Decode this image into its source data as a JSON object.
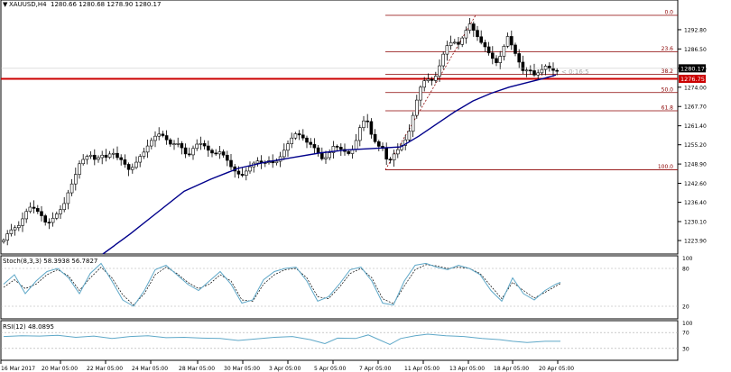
{
  "header": {
    "symbol_label": "XAUUSD,H4",
    "ohlc": "1280.66 1280.68 1278.90 1280.17"
  },
  "colors": {
    "candle_up": "#ffffff",
    "candle_down": "#000000",
    "ma_line": "#00008b",
    "support_line": "#cc0000",
    "fib_line": "#8b0000",
    "stoch_main": "#5fa8c8",
    "stoch_signal": "#000000",
    "rsi_line": "#5fa8c8",
    "price_tag_bg": "#cc0000",
    "bid_tag_bg": "#000000"
  },
  "chart_data": [
    {
      "type": "candlestick",
      "symbol": "XAUUSD",
      "timeframe": "H4",
      "ylim": [
        1219.5,
        1302.5
      ],
      "y_ticks": [
        1223.9,
        1230.1,
        1236.4,
        1242.6,
        1248.9,
        1255.2,
        1261.4,
        1267.7,
        1274.0,
        1280.2,
        1286.5,
        1292.8
      ],
      "x_tick_labels": [
        "16 Mar 2017",
        "20 Mar 05:00",
        "22 Mar 05:00",
        "24 Mar 05:00",
        "28 Mar 05:00",
        "30 Mar 05:00",
        "3 Apr 05:00",
        "5 Apr 05:00",
        "7 Apr 05:00",
        "11 Apr 05:00",
        "13 Apr 05:00",
        "18 Apr 05:00",
        "20 Apr 05:00"
      ],
      "current_price": 1280.17,
      "current_price_label": "1280.17",
      "support_level": 1276.75,
      "support_label": "1276.75",
      "countdown_label": "< 0:16:5",
      "fibonacci": {
        "high": 1297.5,
        "low": 1247.0,
        "levels": [
          {
            "label": "0.0",
            "ratio": 0.0
          },
          {
            "label": "23.6",
            "ratio": 0.236
          },
          {
            "label": "38.2",
            "ratio": 0.382
          },
          {
            "label": "50.0",
            "ratio": 0.5
          },
          {
            "label": "61.8",
            "ratio": 0.618
          },
          {
            "label": "100.0",
            "ratio": 1.0
          }
        ]
      },
      "close_points": [
        [
          0,
          1224
        ],
        [
          6,
          1227
        ],
        [
          12,
          1228
        ],
        [
          18,
          1229
        ],
        [
          24,
          1233
        ],
        [
          30,
          1235
        ],
        [
          36,
          1234
        ],
        [
          42,
          1232
        ],
        [
          48,
          1229
        ],
        [
          54,
          1231
        ],
        [
          60,
          1233
        ],
        [
          66,
          1235
        ],
        [
          72,
          1240
        ],
        [
          78,
          1244
        ],
        [
          84,
          1249
        ],
        [
          90,
          1251
        ],
        [
          96,
          1252
        ],
        [
          102,
          1250
        ],
        [
          108,
          1252
        ],
        [
          114,
          1251
        ],
        [
          120,
          1253
        ],
        [
          126,
          1251
        ],
        [
          132,
          1250
        ],
        [
          138,
          1247
        ],
        [
          144,
          1248
        ],
        [
          150,
          1251
        ],
        [
          156,
          1253
        ],
        [
          162,
          1256
        ],
        [
          168,
          1258
        ],
        [
          174,
          1259
        ],
        [
          180,
          1257
        ],
        [
          186,
          1255
        ],
        [
          192,
          1256
        ],
        [
          198,
          1254
        ],
        [
          204,
          1251
        ],
        [
          210,
          1254
        ],
        [
          216,
          1256
        ],
        [
          222,
          1255
        ],
        [
          228,
          1253
        ],
        [
          234,
          1252
        ],
        [
          240,
          1253
        ],
        [
          246,
          1251
        ],
        [
          252,
          1248
        ],
        [
          258,
          1246
        ],
        [
          264,
          1245
        ],
        [
          270,
          1247
        ],
        [
          276,
          1249
        ],
        [
          282,
          1250
        ],
        [
          288,
          1249
        ],
        [
          294,
          1250
        ],
        [
          300,
          1249
        ],
        [
          306,
          1251
        ],
        [
          312,
          1254
        ],
        [
          318,
          1257
        ],
        [
          324,
          1259
        ],
        [
          330,
          1258
        ],
        [
          336,
          1256
        ],
        [
          342,
          1255
        ],
        [
          348,
          1253
        ],
        [
          354,
          1250
        ],
        [
          360,
          1252
        ],
        [
          366,
          1255
        ],
        [
          372,
          1254
        ],
        [
          378,
          1253
        ],
        [
          384,
          1252
        ],
        [
          390,
          1256
        ],
        [
          396,
          1262
        ],
        [
          402,
          1264
        ],
        [
          408,
          1258
        ],
        [
          414,
          1255
        ],
        [
          420,
          1254
        ],
        [
          426,
          1249
        ],
        [
          432,
          1252
        ],
        [
          438,
          1254
        ],
        [
          444,
          1256
        ],
        [
          450,
          1260
        ],
        [
          456,
          1268
        ],
        [
          462,
          1274
        ],
        [
          468,
          1277
        ],
        [
          474,
          1276
        ],
        [
          480,
          1278
        ],
        [
          486,
          1284
        ],
        [
          492,
          1288
        ],
        [
          498,
          1289
        ],
        [
          504,
          1288
        ],
        [
          510,
          1291
        ],
        [
          516,
          1295
        ],
        [
          522,
          1292
        ],
        [
          528,
          1289
        ],
        [
          534,
          1287
        ],
        [
          540,
          1284
        ],
        [
          546,
          1282
        ],
        [
          552,
          1285
        ],
        [
          558,
          1291
        ],
        [
          564,
          1287
        ],
        [
          570,
          1283
        ],
        [
          576,
          1279
        ],
        [
          582,
          1280
        ],
        [
          588,
          1278
        ],
        [
          594,
          1279
        ],
        [
          600,
          1281
        ],
        [
          606,
          1280
        ],
        [
          612,
          1279
        ],
        [
          617,
          1280.17
        ]
      ],
      "ma_points": [
        [
          110,
          1219.5
        ],
        [
          140,
          1226
        ],
        [
          170,
          1233
        ],
        [
          200,
          1240
        ],
        [
          230,
          1244
        ],
        [
          260,
          1247.5
        ],
        [
          290,
          1249.5
        ],
        [
          320,
          1251
        ],
        [
          350,
          1252.5
        ],
        [
          380,
          1253.5
        ],
        [
          410,
          1254
        ],
        [
          440,
          1254.5
        ],
        [
          460,
          1258
        ],
        [
          480,
          1262
        ],
        [
          500,
          1266
        ],
        [
          520,
          1269.5
        ],
        [
          540,
          1272
        ],
        [
          560,
          1274
        ],
        [
          580,
          1275.5
        ],
        [
          600,
          1277
        ],
        [
          612,
          1278
        ]
      ]
    },
    {
      "type": "line",
      "title": "Stoch(8,3,3) 58.3938 56.7827",
      "ylim": [
        0,
        100
      ],
      "y_ticks": [
        20,
        80,
        100
      ],
      "y_tick_labels": [
        "20",
        "80",
        "100"
      ],
      "series": [
        {
          "name": "main",
          "points": [
            [
              0,
              55
            ],
            [
              12,
              70
            ],
            [
              24,
              40
            ],
            [
              36,
              60
            ],
            [
              48,
              75
            ],
            [
              60,
              80
            ],
            [
              72,
              65
            ],
            [
              84,
              40
            ],
            [
              96,
              72
            ],
            [
              108,
              88
            ],
            [
              120,
              60
            ],
            [
              132,
              30
            ],
            [
              144,
              20
            ],
            [
              156,
              45
            ],
            [
              168,
              78
            ],
            [
              180,
              85
            ],
            [
              192,
              70
            ],
            [
              204,
              55
            ],
            [
              216,
              45
            ],
            [
              228,
              60
            ],
            [
              240,
              75
            ],
            [
              252,
              55
            ],
            [
              264,
              25
            ],
            [
              276,
              30
            ],
            [
              288,
              62
            ],
            [
              300,
              75
            ],
            [
              312,
              80
            ],
            [
              324,
              82
            ],
            [
              336,
              60
            ],
            [
              348,
              28
            ],
            [
              360,
              35
            ],
            [
              372,
              55
            ],
            [
              384,
              78
            ],
            [
              396,
              82
            ],
            [
              408,
              60
            ],
            [
              420,
              25
            ],
            [
              432,
              22
            ],
            [
              444,
              60
            ],
            [
              456,
              85
            ],
            [
              468,
              88
            ],
            [
              480,
              82
            ],
            [
              492,
              78
            ],
            [
              504,
              85
            ],
            [
              516,
              80
            ],
            [
              528,
              70
            ],
            [
              540,
              45
            ],
            [
              552,
              28
            ],
            [
              564,
              65
            ],
            [
              576,
              40
            ],
            [
              588,
              30
            ],
            [
              600,
              45
            ],
            [
              612,
              55
            ],
            [
              617,
              58
            ]
          ]
        },
        {
          "name": "signal",
          "points": [
            [
              0,
              50
            ],
            [
              12,
              62
            ],
            [
              24,
              48
            ],
            [
              36,
              55
            ],
            [
              48,
              70
            ],
            [
              60,
              78
            ],
            [
              72,
              68
            ],
            [
              84,
              45
            ],
            [
              96,
              65
            ],
            [
              108,
              82
            ],
            [
              120,
              65
            ],
            [
              132,
              38
            ],
            [
              144,
              22
            ],
            [
              156,
              40
            ],
            [
              168,
              70
            ],
            [
              180,
              82
            ],
            [
              192,
              72
            ],
            [
              204,
              58
            ],
            [
              216,
              48
            ],
            [
              228,
              55
            ],
            [
              240,
              70
            ],
            [
              252,
              60
            ],
            [
              264,
              30
            ],
            [
              276,
              28
            ],
            [
              288,
              55
            ],
            [
              300,
              70
            ],
            [
              312,
              78
            ],
            [
              324,
              80
            ],
            [
              336,
              65
            ],
            [
              348,
              35
            ],
            [
              360,
              32
            ],
            [
              372,
              50
            ],
            [
              384,
              72
            ],
            [
              396,
              80
            ],
            [
              408,
              65
            ],
            [
              420,
              32
            ],
            [
              432,
              24
            ],
            [
              444,
              52
            ],
            [
              456,
              78
            ],
            [
              468,
              86
            ],
            [
              480,
              84
            ],
            [
              492,
              80
            ],
            [
              504,
              82
            ],
            [
              516,
              80
            ],
            [
              528,
              72
            ],
            [
              540,
              52
            ],
            [
              552,
              32
            ],
            [
              564,
              58
            ],
            [
              576,
              45
            ],
            [
              588,
              33
            ],
            [
              600,
              42
            ],
            [
              612,
              52
            ],
            [
              617,
              56
            ]
          ]
        }
      ]
    },
    {
      "type": "line",
      "title": "RSI(12) 48.0895",
      "ylim": [
        0,
        100
      ],
      "y_ticks": [
        30,
        70,
        100
      ],
      "y_tick_labels": [
        "30",
        "70",
        "100"
      ],
      "series": [
        {
          "name": "rsi",
          "points": [
            [
              0,
              60
            ],
            [
              20,
              62
            ],
            [
              40,
              61
            ],
            [
              60,
              63
            ],
            [
              80,
              58
            ],
            [
              100,
              61
            ],
            [
              120,
              55
            ],
            [
              140,
              60
            ],
            [
              160,
              62
            ],
            [
              180,
              57
            ],
            [
              200,
              58
            ],
            [
              220,
              56
            ],
            [
              240,
              55
            ],
            [
              260,
              50
            ],
            [
              280,
              54
            ],
            [
              300,
              58
            ],
            [
              320,
              60
            ],
            [
              340,
              52
            ],
            [
              356,
              42
            ],
            [
              370,
              56
            ],
            [
              390,
              55
            ],
            [
              404,
              64
            ],
            [
              416,
              52
            ],
            [
              428,
              40
            ],
            [
              440,
              55
            ],
            [
              456,
              62
            ],
            [
              470,
              66
            ],
            [
              490,
              62
            ],
            [
              510,
              60
            ],
            [
              530,
              55
            ],
            [
              550,
              52
            ],
            [
              564,
              48
            ],
            [
              580,
              45
            ],
            [
              600,
              48
            ],
            [
              617,
              48
            ]
          ]
        }
      ]
    }
  ]
}
